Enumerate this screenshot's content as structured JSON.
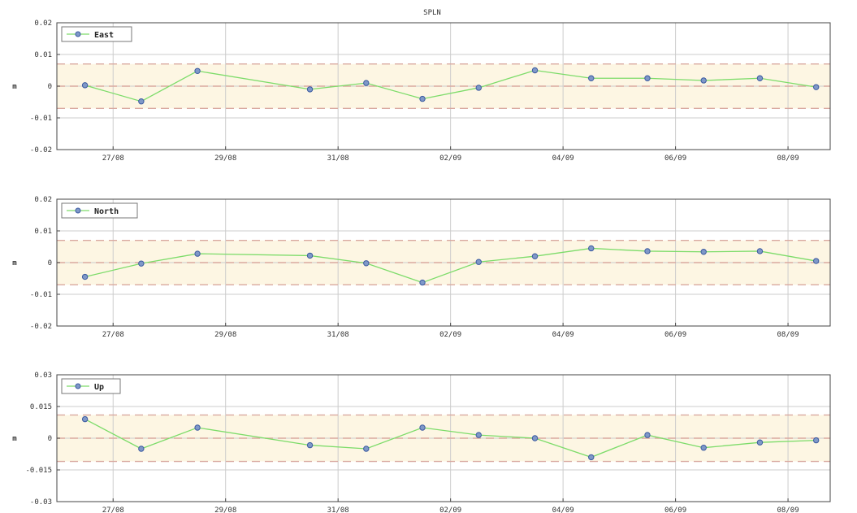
{
  "chart_data": {
    "type": "line",
    "title": "SPLN",
    "colors": {
      "series_line": "#7ddc6a",
      "marker_fill": "#7f98c8",
      "marker_edge": "#3a5aa0",
      "band_fill": "#fdf6e3",
      "band_line": "#d9a9a0",
      "grid": "#cccccc",
      "axes": "#444444"
    },
    "panels": [
      {
        "name": "East",
        "ylabel": "m",
        "ylim": [
          -0.02,
          0.02
        ],
        "yticks": [
          -0.02,
          -0.01,
          0,
          0.01,
          0.02
        ],
        "ytick_labels": [
          "-0.02",
          "-0.01",
          "0",
          "0.01",
          "0.02"
        ],
        "band": 0.007,
        "x": [
          "2013-08-26 12:00",
          "2013-08-27 12:00",
          "2013-08-28 12:00",
          "2013-08-30 12:00",
          "2013-08-31 12:00",
          "2013-09-01 12:00",
          "2013-09-02 12:00",
          "2013-09-03 12:00",
          "2013-09-04 12:00",
          "2013-09-05 12:00",
          "2013-09-06 12:00",
          "2013-09-07 12:00",
          "2013-09-08 12:00"
        ],
        "y": [
          0.0003,
          -0.0048,
          0.0048,
          -0.001,
          0.001,
          -0.004,
          -0.0005,
          0.005,
          0.0025,
          0.0025,
          0.0018,
          0.0025,
          -0.0003
        ]
      },
      {
        "name": "North",
        "ylabel": "m",
        "ylim": [
          -0.02,
          0.02
        ],
        "yticks": [
          -0.02,
          -0.01,
          0,
          0.01,
          0.02
        ],
        "ytick_labels": [
          "-0.02",
          "-0.01",
          "0",
          "0.01",
          "0.02"
        ],
        "band": 0.007,
        "x": [
          "2013-08-26 12:00",
          "2013-08-27 12:00",
          "2013-08-28 12:00",
          "2013-08-30 12:00",
          "2013-08-31 12:00",
          "2013-09-01 12:00",
          "2013-09-02 12:00",
          "2013-09-03 12:00",
          "2013-09-04 12:00",
          "2013-09-05 12:00",
          "2013-09-06 12:00",
          "2013-09-07 12:00",
          "2013-09-08 12:00"
        ],
        "y": [
          -0.0045,
          -0.0003,
          0.0028,
          0.0022,
          -0.0002,
          -0.0063,
          0.0002,
          0.002,
          0.0045,
          0.0036,
          0.0034,
          0.0036,
          0.0005
        ]
      },
      {
        "name": "Up",
        "ylabel": "m",
        "ylim": [
          -0.03,
          0.03
        ],
        "yticks": [
          -0.03,
          -0.015,
          0,
          0.015,
          0.03
        ],
        "ytick_labels": [
          "-0.03",
          "-0.015",
          "0",
          "0.015",
          "0.03"
        ],
        "band": 0.011,
        "x": [
          "2013-08-26 12:00",
          "2013-08-27 12:00",
          "2013-08-28 12:00",
          "2013-08-30 12:00",
          "2013-08-31 12:00",
          "2013-09-01 12:00",
          "2013-09-02 12:00",
          "2013-09-03 12:00",
          "2013-09-04 12:00",
          "2013-09-05 12:00",
          "2013-09-06 12:00",
          "2013-09-07 12:00",
          "2013-09-08 12:00"
        ],
        "y": [
          0.009,
          -0.005,
          0.005,
          -0.0033,
          -0.005,
          0.005,
          0.0015,
          0.0,
          -0.009,
          0.0015,
          -0.0045,
          -0.002,
          -0.001
        ]
      }
    ],
    "xlim": [
      "2013-08-26 00:00",
      "2013-09-08 18:00"
    ],
    "xticks": [
      "2013-08-27",
      "2013-08-29",
      "2013-08-31",
      "2013-09-02",
      "2013-09-04",
      "2013-09-06",
      "2013-09-08"
    ],
    "xtick_labels": [
      "27/08",
      "29/08",
      "31/08",
      "02/09",
      "04/09",
      "06/09",
      "08/09"
    ],
    "grid": true,
    "legend_position": "top-left"
  }
}
